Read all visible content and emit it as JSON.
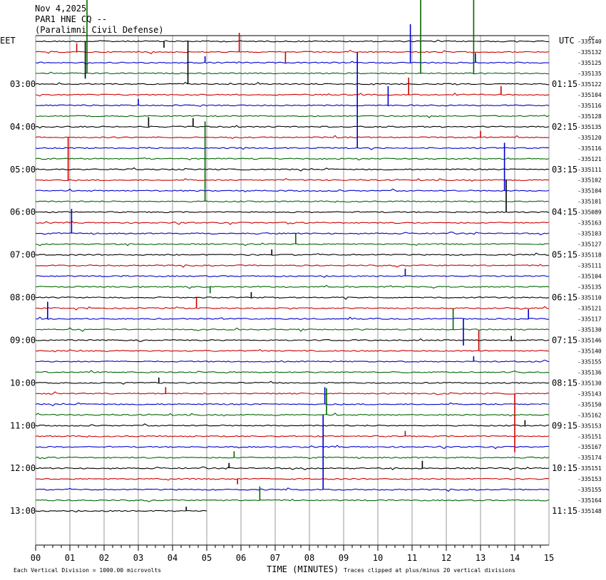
{
  "header": {
    "date": "Nov 4,2025",
    "station": "PAR1 HNE CQ --",
    "location": "(Paralimni Civil Defense)"
  },
  "axes": {
    "left_zone": "EET",
    "right_zone": "UTC",
    "xlabel": "TIME (MINUTES)",
    "footer_left": "Each Vertical Division = 1000.00 microvolts",
    "footer_right": "Traces clipped at plus/minus 20 vertical divisions",
    "corner_mark": "DC"
  },
  "colors": {
    "trace_cycle": [
      "#000000",
      "#cc0000",
      "#0000cc",
      "#006600"
    ],
    "grid": "#999999"
  },
  "chart_data": {
    "type": "line",
    "title": "PAR1 HNE CQ --",
    "x_ticks": [
      "00",
      "01",
      "02",
      "03",
      "04",
      "05",
      "06",
      "07",
      "08",
      "09",
      "10",
      "11",
      "12",
      "13",
      "14",
      "15"
    ],
    "xlim": [
      0,
      15
    ],
    "traces_per_hour": 4,
    "minutes_per_trace": 15,
    "left_hour_labels": [
      "03:00",
      "04:00",
      "05:00",
      "06:00",
      "07:00",
      "08:00",
      "09:00",
      "10:00",
      "11:00",
      "12:00",
      "13:00"
    ],
    "right_hour_labels": [
      "01:15",
      "02:15",
      "03:15",
      "04:15",
      "05:15",
      "06:15",
      "07:15",
      "08:15",
      "09:15",
      "10:15",
      "11:15"
    ],
    "trace_offsets": [
      "-335140",
      "-335132",
      "-335125",
      "-335135",
      "-335122",
      "-335104",
      "-335116",
      "-335128",
      "-335135",
      "-335120",
      "-335116",
      "-335121",
      "-335111",
      "-335102",
      "-335104",
      "-335101",
      "-335089",
      "-335163",
      "-335103",
      "-335127",
      "-335118",
      "-335111",
      "-335104",
      "-335135",
      "-335110",
      "-335121",
      "-335117",
      "-335130",
      "-335146",
      "-335140",
      "-335155",
      "-335136",
      "-335130",
      "-335143",
      "-335150",
      "-335162",
      "-335153",
      "-335151",
      "-335167",
      "-335174",
      "-335151",
      "-335153",
      "-335155",
      "-335164",
      "-335148"
    ],
    "last_trace_end_minute": 5.0,
    "events": [
      {
        "trace": 0,
        "minute": 4.45,
        "amp": 4.0
      },
      {
        "trace": 0,
        "minute": 1.45,
        "amp": 3.5
      },
      {
        "trace": 0,
        "minute": 3.75,
        "amp": 0.6
      },
      {
        "trace": 1,
        "minute": 5.95,
        "amp": -1.8
      },
      {
        "trace": 1,
        "minute": 7.3,
        "amp": 1.0
      },
      {
        "trace": 1,
        "minute": 1.2,
        "amp": -0.8
      },
      {
        "trace": 2,
        "minute": 10.95,
        "amp": -3.6
      },
      {
        "trace": 2,
        "minute": 12.85,
        "amp": -0.9
      },
      {
        "trace": 2,
        "minute": 4.95,
        "amp": -0.6
      },
      {
        "trace": 3,
        "minute": 1.5,
        "amp": -12.0
      },
      {
        "trace": 3,
        "minute": 12.8,
        "amp": -9.5
      },
      {
        "trace": 3,
        "minute": 11.25,
        "amp": -7.0
      },
      {
        "trace": 5,
        "minute": 10.9,
        "amp": -1.6
      },
      {
        "trace": 5,
        "minute": 13.6,
        "amp": -0.8
      },
      {
        "trace": 6,
        "minute": 10.3,
        "amp": -1.8
      },
      {
        "trace": 6,
        "minute": 3.0,
        "amp": -0.6
      },
      {
        "trace": 8,
        "minute": 3.3,
        "amp": -0.9
      },
      {
        "trace": 8,
        "minute": 4.6,
        "amp": -0.8
      },
      {
        "trace": 9,
        "minute": 13.0,
        "amp": -0.6
      },
      {
        "trace": 10,
        "minute": 9.4,
        "amp": -9.0
      },
      {
        "trace": 13,
        "minute": 0.95,
        "amp": -4.0
      },
      {
        "trace": 14,
        "minute": 13.7,
        "amp": -4.5
      },
      {
        "trace": 15,
        "minute": 4.95,
        "amp": -7.5
      },
      {
        "trace": 16,
        "minute": 13.75,
        "amp": -3.0
      },
      {
        "trace": 18,
        "minute": 1.05,
        "amp": -2.3
      },
      {
        "trace": 19,
        "minute": 7.6,
        "amp": -1.0
      },
      {
        "trace": 20,
        "minute": 6.9,
        "amp": -0.5
      },
      {
        "trace": 22,
        "minute": 10.8,
        "amp": -0.7
      },
      {
        "trace": 23,
        "minute": 5.1,
        "amp": 0.6
      },
      {
        "trace": 24,
        "minute": 6.3,
        "amp": -0.5
      },
      {
        "trace": 25,
        "minute": 4.7,
        "amp": -1.0
      },
      {
        "trace": 26,
        "minute": 12.5,
        "amp": 2.5
      },
      {
        "trace": 26,
        "minute": 0.35,
        "amp": -1.6
      },
      {
        "trace": 26,
        "minute": 14.4,
        "amp": -0.9
      },
      {
        "trace": 27,
        "minute": 12.2,
        "amp": -2.0
      },
      {
        "trace": 28,
        "minute": 13.9,
        "amp": -0.4
      },
      {
        "trace": 29,
        "minute": 12.95,
        "amp": -1.9
      },
      {
        "trace": 30,
        "minute": 12.8,
        "amp": -0.5
      },
      {
        "trace": 32,
        "minute": 3.6,
        "amp": -0.5
      },
      {
        "trace": 33,
        "minute": 14.0,
        "amp": 5.5
      },
      {
        "trace": 33,
        "minute": 3.8,
        "amp": -0.6
      },
      {
        "trace": 34,
        "minute": 8.45,
        "amp": -1.6
      },
      {
        "trace": 35,
        "minute": 8.5,
        "amp": -2.5
      },
      {
        "trace": 36,
        "minute": 14.3,
        "amp": -0.5
      },
      {
        "trace": 37,
        "minute": 10.8,
        "amp": -0.5
      },
      {
        "trace": 39,
        "minute": 5.8,
        "amp": -0.6
      },
      {
        "trace": 40,
        "minute": 5.65,
        "amp": -0.5
      },
      {
        "trace": 40,
        "minute": 11.3,
        "amp": -0.7
      },
      {
        "trace": 41,
        "minute": 5.9,
        "amp": 0.5
      },
      {
        "trace": 42,
        "minute": 8.4,
        "amp": -7.0
      },
      {
        "trace": 43,
        "minute": 6.55,
        "amp": -1.3
      },
      {
        "trace": 44,
        "minute": 4.4,
        "amp": -0.4
      }
    ]
  }
}
